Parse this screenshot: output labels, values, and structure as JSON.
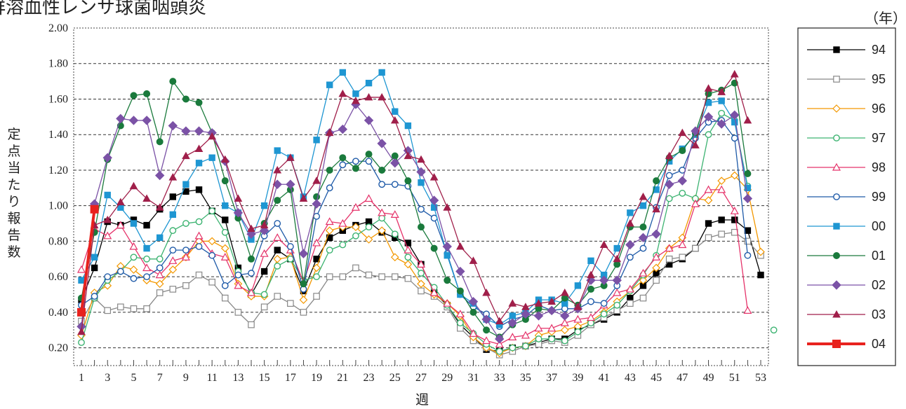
{
  "title": "群溶血性レンサ球菌咽頭炎",
  "legend_title": "（年）",
  "chart_data": {
    "type": "line",
    "ylabel": "定点当たり報告数",
    "xlabel": "週",
    "ylim": [
      0.1,
      2.0
    ],
    "xlim": [
      1,
      53
    ],
    "yticks": [
      "0.20",
      "0.40",
      "0.60",
      "0.80",
      "1.00",
      "1.20",
      "1.40",
      "1.60",
      "1.80",
      "2.00"
    ],
    "xticks": [
      "1",
      "3",
      "5",
      "7",
      "9",
      "11",
      "13",
      "15",
      "17",
      "19",
      "21",
      "23",
      "25",
      "27",
      "29",
      "31",
      "33",
      "35",
      "37",
      "39",
      "41",
      "43",
      "45",
      "47",
      "49",
      "51",
      "53"
    ],
    "grid": "horizontal dashed",
    "legend_position": "right",
    "series": [
      {
        "name": "94",
        "color": "#000000",
        "marker": "square-filled",
        "values": [
          0.47,
          0.65,
          0.91,
          0.89,
          0.92,
          0.89,
          0.98,
          1.05,
          1.08,
          1.09,
          0.97,
          0.92,
          0.65,
          0.5,
          0.63,
          0.75,
          0.7,
          0.52,
          0.7,
          0.82,
          0.86,
          0.89,
          0.91,
          0.85,
          0.82,
          0.79,
          0.67,
          0.51,
          0.44,
          0.33,
          0.26,
          0.19,
          0.18,
          0.2,
          0.21,
          0.23,
          0.25,
          0.25,
          0.3,
          0.33,
          0.36,
          0.4,
          0.48,
          0.55,
          0.62,
          0.67,
          0.7,
          0.76,
          0.9,
          0.92,
          0.92,
          0.86,
          0.61,
          null
        ]
      },
      {
        "name": "95",
        "color": "#888888",
        "marker": "square-open",
        "values": [
          0.35,
          0.48,
          0.41,
          0.43,
          0.42,
          0.42,
          0.51,
          0.53,
          0.55,
          0.61,
          0.57,
          0.48,
          0.4,
          0.33,
          0.43,
          0.49,
          0.45,
          0.4,
          0.49,
          0.6,
          0.6,
          0.65,
          0.61,
          0.6,
          0.6,
          0.59,
          0.52,
          0.49,
          0.43,
          0.31,
          0.24,
          0.2,
          0.16,
          0.18,
          0.21,
          0.22,
          0.24,
          0.23,
          0.27,
          0.33,
          0.37,
          0.41,
          0.45,
          0.48,
          0.58,
          0.7,
          0.71,
          0.76,
          0.82,
          0.84,
          0.85,
          0.8,
          0.72,
          null
        ]
      },
      {
        "name": "96",
        "color": "#f39800",
        "marker": "diamond-open",
        "values": [
          0.27,
          0.51,
          0.55,
          0.66,
          0.64,
          0.58,
          0.56,
          0.64,
          0.71,
          0.8,
          0.8,
          0.76,
          0.56,
          0.49,
          0.49,
          0.7,
          0.71,
          0.47,
          0.65,
          0.86,
          0.88,
          0.88,
          0.81,
          0.86,
          0.71,
          0.67,
          0.56,
          0.5,
          0.45,
          0.38,
          0.26,
          0.2,
          0.17,
          0.2,
          0.21,
          0.27,
          0.29,
          0.3,
          0.32,
          0.35,
          0.4,
          0.46,
          0.52,
          0.58,
          0.65,
          0.76,
          0.82,
          1.04,
          1.03,
          1.14,
          1.17,
          1.09,
          0.74,
          null
        ]
      },
      {
        "name": "97",
        "color": "#3cb371",
        "marker": "circle-open",
        "values": [
          0.23,
          0.48,
          0.58,
          0.63,
          0.71,
          0.7,
          0.7,
          0.86,
          0.9,
          0.91,
          0.97,
          0.85,
          0.63,
          0.51,
          0.5,
          0.66,
          0.7,
          0.58,
          0.6,
          0.75,
          0.78,
          0.83,
          0.88,
          0.93,
          0.84,
          0.71,
          0.62,
          0.54,
          0.44,
          0.34,
          0.28,
          0.22,
          0.18,
          0.2,
          0.21,
          0.25,
          0.25,
          0.24,
          0.29,
          0.34,
          0.39,
          0.44,
          0.52,
          0.61,
          0.72,
          1.04,
          1.07,
          1.04,
          1.4,
          1.52,
          1.48,
          1.11,
          null,
          0.3
        ]
      },
      {
        "name": "98",
        "color": "#e5336a",
        "marker": "triangle-open",
        "values": [
          0.64,
          0.87,
          0.83,
          0.89,
          0.77,
          0.65,
          0.61,
          0.69,
          0.71,
          0.83,
          0.73,
          0.71,
          0.55,
          0.51,
          0.73,
          0.82,
          0.75,
          0.57,
          0.79,
          0.91,
          0.9,
          0.99,
          1.04,
          0.96,
          0.95,
          0.75,
          0.67,
          0.51,
          0.45,
          0.39,
          0.28,
          0.24,
          0.22,
          0.26,
          0.27,
          0.31,
          0.31,
          0.34,
          0.36,
          0.37,
          0.44,
          0.51,
          0.53,
          0.62,
          0.71,
          0.76,
          0.78,
          1.01,
          1.09,
          1.09,
          0.97,
          0.41,
          null,
          null
        ]
      },
      {
        "name": "99",
        "color": "#1e5aa8",
        "marker": "circle-open",
        "values": [
          0.44,
          0.49,
          0.6,
          0.63,
          0.59,
          0.6,
          0.65,
          0.75,
          0.75,
          0.77,
          0.72,
          0.55,
          0.61,
          0.62,
          0.83,
          0.9,
          0.77,
          0.53,
          0.94,
          1.1,
          1.23,
          1.25,
          1.25,
          1.12,
          1.12,
          1.11,
          0.98,
          0.93,
          0.73,
          0.5,
          0.43,
          0.39,
          0.32,
          0.36,
          0.38,
          0.44,
          0.41,
          0.42,
          0.42,
          0.46,
          0.45,
          0.55,
          0.71,
          0.76,
          0.99,
          1.17,
          1.2,
          1.38,
          1.47,
          1.48,
          1.38,
          0.72,
          null,
          null
        ]
      },
      {
        "name": "00",
        "color": "#1e96d2",
        "marker": "square-filled",
        "values": [
          0.58,
          0.71,
          1.06,
          0.99,
          0.9,
          0.76,
          0.82,
          0.95,
          1.12,
          1.24,
          1.27,
          1.0,
          0.96,
          0.81,
          1.0,
          1.31,
          1.27,
          1.05,
          1.37,
          1.68,
          1.75,
          1.63,
          1.69,
          1.75,
          1.53,
          1.45,
          1.13,
          0.99,
          0.72,
          0.5,
          0.45,
          0.36,
          0.33,
          0.38,
          0.4,
          0.47,
          0.47,
          0.45,
          0.55,
          0.69,
          0.61,
          0.76,
          0.96,
          1.0,
          1.09,
          1.25,
          1.32,
          1.4,
          1.58,
          1.59,
          1.47,
          1.1,
          null,
          null
        ]
      },
      {
        "name": "01",
        "color": "#1a7a3c",
        "marker": "circle-filled",
        "values": [
          0.48,
          0.85,
          1.26,
          1.45,
          1.62,
          1.63,
          1.36,
          1.7,
          1.6,
          1.58,
          1.41,
          1.14,
          0.93,
          0.7,
          0.9,
          1.03,
          1.09,
          0.56,
          1.05,
          1.2,
          1.27,
          1.21,
          1.29,
          1.2,
          1.28,
          1.14,
          0.88,
          0.76,
          0.58,
          0.52,
          0.4,
          0.3,
          0.26,
          0.33,
          0.36,
          0.42,
          0.41,
          0.48,
          0.44,
          0.53,
          0.55,
          0.67,
          0.88,
          0.88,
          1.14,
          1.27,
          1.31,
          1.41,
          1.63,
          1.65,
          1.69,
          1.18,
          null,
          null
        ]
      },
      {
        "name": "02",
        "color": "#7b52a6",
        "marker": "diamond-filled",
        "values": [
          0.32,
          1.01,
          1.27,
          1.49,
          1.48,
          1.48,
          1.17,
          1.45,
          1.42,
          1.42,
          1.41,
          1.25,
          0.96,
          0.84,
          0.86,
          1.12,
          1.12,
          0.73,
          1.01,
          1.41,
          1.43,
          1.57,
          1.48,
          1.35,
          1.24,
          1.31,
          1.19,
          1.03,
          0.77,
          0.63,
          0.46,
          0.36,
          0.25,
          0.34,
          0.39,
          0.38,
          0.41,
          0.38,
          0.42,
          0.58,
          0.58,
          0.58,
          0.78,
          0.82,
          0.84,
          1.12,
          1.14,
          1.42,
          1.5,
          1.46,
          1.51,
          1.04,
          null,
          null
        ]
      },
      {
        "name": "03",
        "color": "#a01f4a",
        "marker": "triangle-filled",
        "values": [
          0.29,
          0.89,
          0.92,
          1.02,
          1.11,
          1.04,
          0.99,
          1.16,
          1.28,
          1.32,
          1.39,
          1.26,
          1.04,
          0.87,
          0.89,
          1.2,
          1.27,
          1.04,
          1.14,
          1.41,
          1.63,
          1.59,
          1.61,
          1.61,
          1.48,
          1.28,
          1.26,
          1.16,
          0.99,
          0.77,
          0.69,
          0.51,
          0.35,
          0.45,
          0.43,
          0.45,
          0.46,
          0.51,
          0.43,
          0.61,
          0.78,
          0.7,
          0.9,
          1.05,
          0.98,
          1.28,
          1.41,
          1.34,
          1.66,
          1.64,
          1.74,
          1.48,
          null,
          null
        ]
      },
      {
        "name": "04",
        "color": "#e8221e",
        "marker": "square-filled-large",
        "thick": true,
        "values": [
          0.4,
          0.98,
          null,
          null,
          null,
          null,
          null,
          null,
          null,
          null,
          null,
          null,
          null,
          null,
          null,
          null,
          null,
          null,
          null,
          null,
          null,
          null,
          null,
          null,
          null,
          null,
          null,
          null,
          null,
          null,
          null,
          null,
          null,
          null,
          null,
          null,
          null,
          null,
          null,
          null,
          null,
          null,
          null,
          null,
          null,
          null,
          null,
          null,
          null,
          null,
          null,
          null,
          null,
          null
        ]
      }
    ]
  }
}
